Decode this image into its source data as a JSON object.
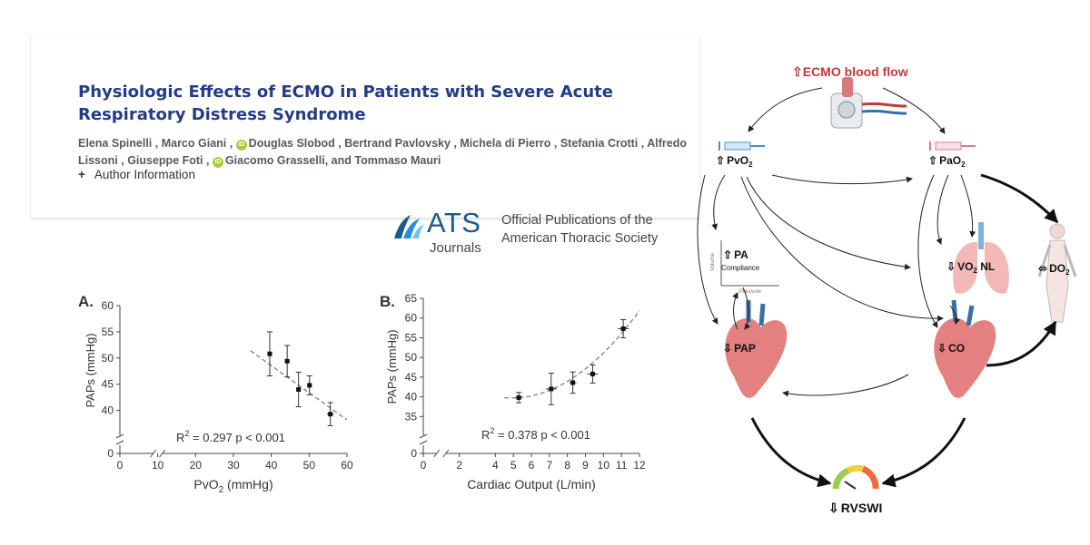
{
  "article": {
    "title": "Physiologic Effects of ECMO in Patients with Severe Acute Respiratory Distress Syndrome",
    "authors": [
      {
        "name": "Elena Spinelli",
        "orcid": false
      },
      {
        "name": "Marco Giani",
        "orcid": false
      },
      {
        "name": "Douglas Slobod",
        "orcid": true
      },
      {
        "name": "Bertrand Pavlovsky",
        "orcid": false
      },
      {
        "name": "Michela di Pierro",
        "orcid": false
      },
      {
        "name": "Stefania Crotti",
        "orcid": false
      },
      {
        "name": "Alfredo Lissoni",
        "orcid": false
      },
      {
        "name": "Giuseppe Foti",
        "orcid": false
      },
      {
        "name": "Giacomo Grasselli",
        "orcid": true
      },
      {
        "name": "Tommaso Mauri",
        "orcid": false
      }
    ],
    "and_text": ", and",
    "orcid_badge": "iD",
    "author_info_symbol": "+",
    "author_info_label": "Author Information"
  },
  "publisher": {
    "name": "ATS",
    "sub": "Journals",
    "line1": "Official Publications of the",
    "line2": "American Thoracic Society",
    "brand_color": "#1a5a8c"
  },
  "chart_data": [
    {
      "type": "scatter",
      "panel": "A.",
      "xlabel": "PvO",
      "xlabel_sub": "2",
      "xlabel_tail": " (mmHg)",
      "ylabel": "PAPs (mmHg)",
      "xlim": [
        0,
        60
      ],
      "xticks": [
        0,
        10,
        20,
        30,
        40,
        50,
        60
      ],
      "yticks": [
        0,
        40,
        45,
        50,
        55,
        60
      ],
      "ylim_main": [
        37,
        60
      ],
      "points": [
        {
          "x": 39.6,
          "y": 50.8,
          "yerr": 4.2,
          "xerr": 0.6
        },
        {
          "x": 44.2,
          "y": 49.4,
          "yerr": 3.0,
          "xerr": 0.6
        },
        {
          "x": 47.2,
          "y": 44.0,
          "yerr": 3.3,
          "xerr": 0.6
        },
        {
          "x": 50.1,
          "y": 44.8,
          "yerr": 1.8,
          "xerr": 0.6
        },
        {
          "x": 55.6,
          "y": 39.3,
          "yerr": 2.2,
          "xerr": 0.9
        }
      ],
      "fit": {
        "kind": "linear",
        "x": [
          34.5,
          60
        ],
        "y": [
          51.4,
          38.2
        ]
      },
      "annotation_lhs": "R",
      "annotation_sup": "2",
      "annotation_rhs": " = 0.297 p < 0.001"
    },
    {
      "type": "scatter",
      "panel": "B.",
      "xlabel": "Cardiac Output (L/min)",
      "ylabel": "PAPs (mmHg)",
      "xlim": [
        0,
        12
      ],
      "xticks": [
        0,
        2,
        4,
        5,
        6,
        7,
        8,
        9,
        10,
        11,
        12
      ],
      "xtick_labels": [
        "0",
        "2",
        "4",
        "5",
        "6",
        "7",
        "8",
        "9",
        "10",
        "11",
        "12"
      ],
      "yticks": [
        0,
        35,
        40,
        45,
        50,
        55,
        60,
        65
      ],
      "ylim_main": [
        33,
        65
      ],
      "points": [
        {
          "x": 5.3,
          "y": 39.8,
          "yerr": 1.3,
          "xerr": 0.2
        },
        {
          "x": 7.1,
          "y": 42.0,
          "yerr": 4.0,
          "xerr": 0.3
        },
        {
          "x": 8.3,
          "y": 43.6,
          "yerr": 2.7,
          "xerr": 0.2
        },
        {
          "x": 9.4,
          "y": 45.8,
          "yerr": 2.3,
          "xerr": 0.3
        },
        {
          "x": 11.1,
          "y": 57.3,
          "yerr": 2.3,
          "xerr": 0.3
        }
      ],
      "fit": {
        "kind": "quadratic",
        "x": [
          4.5,
          12
        ],
        "vertex_x": 4.9,
        "vertex_y": 39.7,
        "a": 0.44
      },
      "annotation_lhs": "R",
      "annotation_sup": "2",
      "annotation_rhs": " = 0.378 p < 0.001"
    }
  ],
  "diagram": {
    "nodes": {
      "ecmo": {
        "arrow": "⇧",
        "label": "ECMO blood flow",
        "color": "#c0393b"
      },
      "pvo2": {
        "arrow": "⇧",
        "label": "PvO",
        "sub": "2"
      },
      "pao2": {
        "arrow": "⇧",
        "label": "PaO",
        "sub": "2"
      },
      "pa": {
        "arrow": "⇧",
        "label": "PA",
        "sub_label": "Compliance",
        "axis_y": "Volume",
        "axis_x": "Pressure"
      },
      "vo2": {
        "arrow": "⇩",
        "label": "VO",
        "sub": "2",
        "tail": " NL"
      },
      "do2": {
        "arrow": "⬄",
        "label": "DO",
        "sub": "2"
      },
      "pap": {
        "arrow": "⇩",
        "label": "PAP"
      },
      "co": {
        "arrow": "⇩",
        "label": "CO"
      },
      "rvswi": {
        "arrow": "⇩",
        "label": "RVSWI"
      }
    },
    "colors": {
      "arrow": "#222222",
      "syringe_venous": "#4a8fc8",
      "syringe_arterial": "#e07a8a",
      "heart": "#e48080",
      "lung": "#f3b8b8"
    }
  }
}
